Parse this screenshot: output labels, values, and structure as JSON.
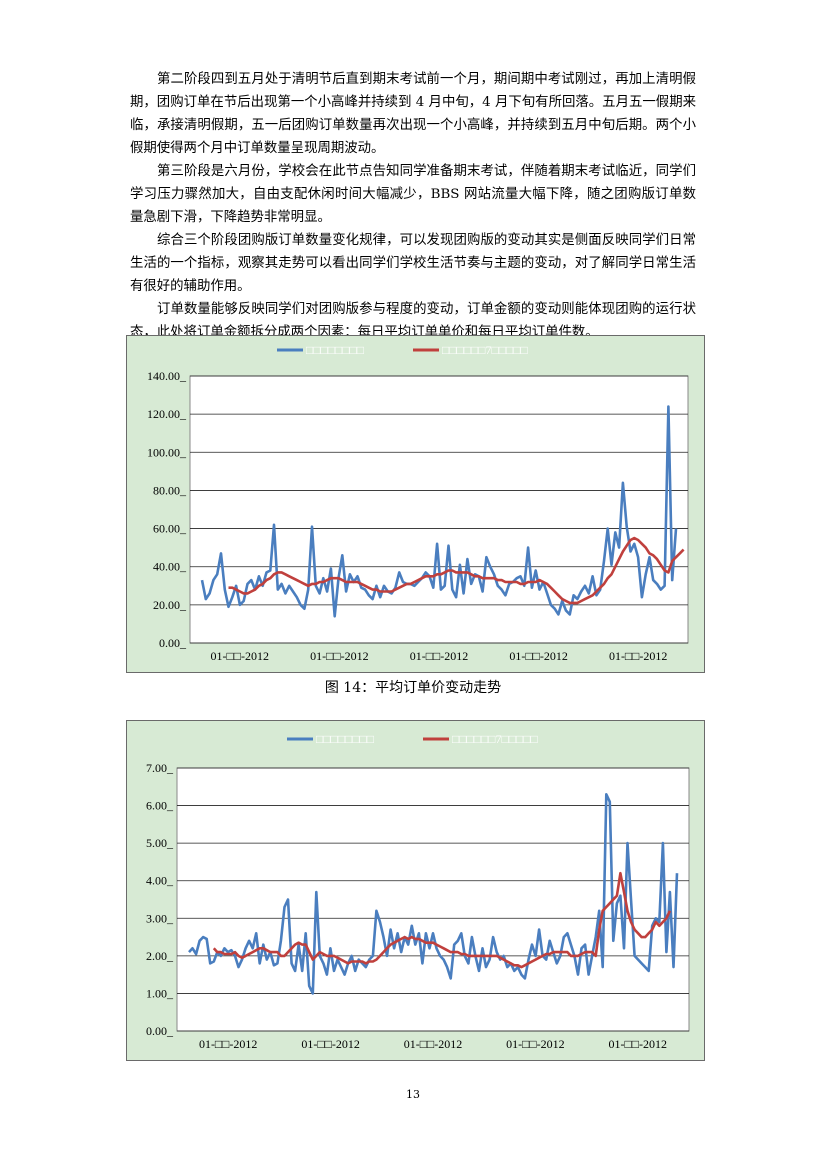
{
  "paragraphs": [
    "第二阶段四到五月处于清明节后直到期末考试前一个月，期间期中考试刚过，再加上清明假期，团购订单在节后出现第一个小高峰并持续到 4 月中旬，4 月下旬有所回落。五月五一假期来临，承接清明假期，五一后团购订单数量再次出现一个小高峰，并持续到五月中旬后期。两个小假期使得两个月中订单数量呈现周期波动。",
    "第三阶段是六月份，学校会在此节点告知同学准备期末考试，伴随着期末考试临近，同学们学习压力骤然加大，自由支配休闲时间大幅减少，BBS 网站流量大幅下降，随之团购版订单数量急剧下滑，下降趋势非常明显。",
    "综合三个阶段团购版订单数量变化规律，可以发现团购版的变动其实是侧面反映同学们日常生活的一个指标，观察其走势可以看出同学们学校生活节奏与主题的变动，对了解同学日常生活有很好的辅助作用。",
    "订单数量能够反映同学们对团购版参与程度的变动，订单金额的变动则能体现团购的运行状态，此处将订单金额拆分成两个因素：每日平均订单单价和每日平均订单件数。"
  ],
  "colors": {
    "series_raw": "#4a7ebf",
    "series_ma": "#c0403d",
    "plot_bg": "#ffffff",
    "frame_bg": "#d7ead4"
  },
  "figure14_caption": "图 14：平均订单价变动走势",
  "page_number": "13",
  "chart_data": [
    {
      "type": "line",
      "title": "",
      "legend_position": "top",
      "series": [
        {
          "name": "□□□□□□□□",
          "color": "#4a7ebf",
          "values": [
            33,
            23,
            26,
            33,
            36,
            47,
            28,
            19,
            24,
            30,
            20,
            22,
            31,
            33,
            28,
            35,
            30,
            37,
            38,
            62,
            28,
            31,
            26,
            30,
            27,
            24,
            20,
            18,
            28,
            61,
            30,
            26,
            34,
            27,
            39,
            14,
            34,
            46,
            27,
            36,
            32,
            35,
            29,
            28,
            25,
            23,
            30,
            24,
            30,
            27,
            26,
            29,
            37,
            32,
            31,
            31,
            30,
            32,
            34,
            37,
            35,
            29,
            52,
            28,
            30,
            51,
            28,
            24,
            41,
            26,
            44,
            31,
            36,
            35,
            27,
            45,
            40,
            36,
            30,
            28,
            25,
            31,
            32,
            34,
            35,
            30,
            50,
            29,
            38,
            28,
            32,
            26,
            20,
            18,
            15,
            22,
            17,
            15,
            25,
            23,
            27,
            30,
            26,
            35,
            25,
            28,
            43,
            60,
            41,
            58,
            50,
            84,
            61,
            48,
            52,
            45,
            24,
            36,
            45,
            33,
            31,
            28,
            30,
            124,
            33,
            60
          ]
        },
        {
          "name": "□□□□□□7□□□□□",
          "color": "#c0403d",
          "values": [
            null,
            null,
            null,
            null,
            null,
            null,
            null,
            29,
            29,
            28,
            27,
            26,
            26,
            27,
            28,
            30,
            31,
            33,
            34,
            36,
            37,
            37,
            36,
            35,
            34,
            33,
            32,
            31,
            30,
            31,
            31,
            32,
            32,
            33,
            34,
            34,
            34,
            33,
            32,
            32,
            32,
            32,
            31,
            30,
            29,
            28,
            28,
            27,
            27,
            27,
            27,
            28,
            29,
            30,
            31,
            31,
            32,
            33,
            34,
            35,
            35,
            35,
            36,
            36,
            37,
            38,
            38,
            37,
            37,
            37,
            37,
            36,
            35,
            35,
            34,
            34,
            34,
            34,
            33,
            33,
            32,
            32,
            32,
            32,
            31,
            31,
            32,
            32,
            32,
            33,
            32,
            31,
            29,
            27,
            25,
            23,
            22,
            21,
            21,
            21,
            22,
            23,
            24,
            25,
            27,
            29,
            31,
            34,
            36,
            40,
            44,
            48,
            51,
            54,
            55,
            54,
            52,
            50,
            47,
            46,
            44,
            41,
            38,
            37,
            43,
            45,
            47,
            49
          ]
        }
      ],
      "x_tick_labels": [
        "01-□□-2012",
        "01-□□-2012",
        "01-□□-2012",
        "01-□□-2012",
        "01-□□-2012"
      ],
      "y_tick_labels": [
        "0.00_",
        "20.00_",
        "40.00_",
        "60.00_",
        "80.00_",
        "100.00_",
        "120.00_",
        "140.00_"
      ],
      "ylim": [
        0,
        140
      ],
      "grid": true
    },
    {
      "type": "line",
      "title": "",
      "legend_position": "top",
      "series": [
        {
          "name": "□□□□□□□□",
          "color": "#4a7ebf",
          "values": [
            2.1,
            2.2,
            2.05,
            2.4,
            2.5,
            2.45,
            1.8,
            1.85,
            2.1,
            2.0,
            2.2,
            2.1,
            2.15,
            2.0,
            1.7,
            1.9,
            2.2,
            2.4,
            2.2,
            2.6,
            1.8,
            2.3,
            1.9,
            2.1,
            1.75,
            1.8,
            2.4,
            3.3,
            3.5,
            1.8,
            1.6,
            2.3,
            1.6,
            2.6,
            1.2,
            1.0,
            3.7,
            2.0,
            1.8,
            1.5,
            2.2,
            1.6,
            1.9,
            1.7,
            1.5,
            1.8,
            2.0,
            1.6,
            1.9,
            1.8,
            1.7,
            1.9,
            2.0,
            3.2,
            2.9,
            2.5,
            2.0,
            2.7,
            2.2,
            2.6,
            2.1,
            2.5,
            2.3,
            2.8,
            2.3,
            2.6,
            1.8,
            2.6,
            2.2,
            2.6,
            2.2,
            2.0,
            1.9,
            1.7,
            1.4,
            2.3,
            2.4,
            2.6,
            2.0,
            1.8,
            2.5,
            2.0,
            1.6,
            2.2,
            1.7,
            1.9,
            2.5,
            2.1,
            1.9,
            2.0,
            1.7,
            1.8,
            1.6,
            1.7,
            1.5,
            1.4,
            1.9,
            2.3,
            2.0,
            2.7,
            2.0,
            1.9,
            2.4,
            2.1,
            1.8,
            2.0,
            2.5,
            2.6,
            2.3,
            2.0,
            1.5,
            2.2,
            2.3,
            1.5,
            2.0,
            2.5,
            3.2,
            1.7,
            6.3,
            6.1,
            2.4,
            3.4,
            3.6,
            2.2,
            5.0,
            3.5,
            2.0,
            1.9,
            1.8,
            1.7,
            1.6,
            2.8,
            3.0,
            2.9,
            5.0,
            2.1,
            3.7,
            1.7,
            4.2
          ]
        },
        {
          "name": "□□□□□□7□□□□□",
          "color": "#c0403d",
          "values": [
            null,
            null,
            null,
            null,
            null,
            null,
            null,
            2.2,
            2.1,
            2.1,
            2.05,
            2.05,
            2.05,
            2.1,
            2.0,
            1.95,
            2.0,
            2.05,
            2.1,
            2.15,
            2.2,
            2.2,
            2.15,
            2.1,
            2.1,
            2.1,
            2.0,
            2.0,
            2.1,
            2.2,
            2.3,
            2.35,
            2.3,
            2.3,
            2.1,
            1.9,
            2.0,
            2.1,
            2.05,
            2.0,
            2.0,
            2.0,
            1.95,
            1.9,
            1.85,
            1.8,
            1.85,
            1.85,
            1.85,
            1.85,
            1.8,
            1.85,
            1.85,
            1.9,
            2.0,
            2.1,
            2.2,
            2.3,
            2.35,
            2.4,
            2.45,
            2.5,
            2.45,
            2.5,
            2.45,
            2.45,
            2.4,
            2.35,
            2.35,
            2.35,
            2.3,
            2.25,
            2.2,
            2.15,
            2.1,
            2.1,
            2.1,
            2.05,
            2.05,
            2.0,
            2.0,
            2.0,
            2.0,
            2.0,
            2.0,
            2.0,
            2.0,
            2.0,
            1.95,
            1.9,
            1.85,
            1.8,
            1.75,
            1.75,
            1.7,
            1.75,
            1.8,
            1.85,
            1.9,
            1.95,
            2.0,
            2.05,
            2.05,
            2.1,
            2.1,
            2.1,
            2.1,
            2.1,
            2.0,
            2.0,
            2.0,
            2.05,
            2.1,
            2.1,
            2.1,
            2.0,
            2.7,
            3.2,
            3.3,
            3.4,
            3.5,
            3.6,
            4.2,
            3.7,
            3.2,
            2.9,
            2.7,
            2.6,
            2.5,
            2.5,
            2.6,
            2.7,
            2.9,
            2.8,
            2.9,
            3.0,
            3.2
          ]
        }
      ],
      "x_tick_labels": [
        "01-□□-2012",
        "01-□□-2012",
        "01-□□-2012",
        "01-□□-2012",
        "01-□□-2012"
      ],
      "y_tick_labels": [
        "0.00_",
        "1.00_",
        "2.00_",
        "3.00_",
        "4.00_",
        "5.00_",
        "6.00_",
        "7.00_"
      ],
      "ylim": [
        0,
        7
      ],
      "grid": true
    }
  ]
}
